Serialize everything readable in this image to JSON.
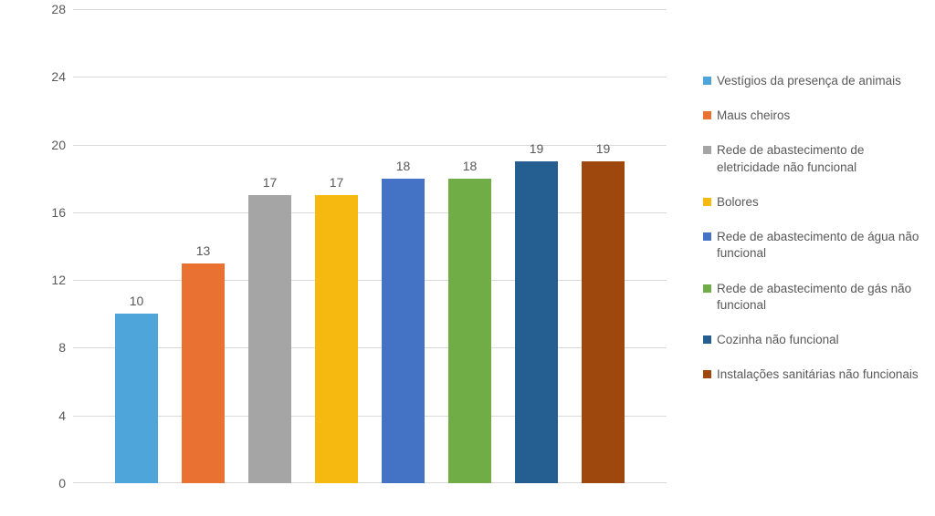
{
  "chart": {
    "type": "bar",
    "background_color": "#ffffff",
    "grid_color": "#d9d9d9",
    "axis_font_color": "#595959",
    "axis_fontsize": 14,
    "datalabel_fontsize": 14,
    "legend_fontsize": 13.5,
    "ylim": [
      0,
      28
    ],
    "ytick_step": 4,
    "yticks": [
      0,
      4,
      8,
      12,
      16,
      20,
      24,
      28
    ],
    "bar_width_ratio": 0.78,
    "series": [
      {
        "label": "Vestígios da presença de animais",
        "value": 10,
        "color": "#4ea5d9"
      },
      {
        "label": "Maus cheiros",
        "value": 13,
        "color": "#e97132"
      },
      {
        "label": "Rede de abastecimento de eletricidade não funcional",
        "value": 17,
        "color": "#a5a5a5"
      },
      {
        "label": "Bolores",
        "value": 17,
        "color": "#f5b90f"
      },
      {
        "label": "Rede de abastecimento de água não funcional",
        "value": 18,
        "color": "#4472c4"
      },
      {
        "label": "Rede de abastecimento de gás não funcional",
        "value": 18,
        "color": "#70ad47"
      },
      {
        "label": "Cozinha não funcional",
        "value": 19,
        "color": "#255e91"
      },
      {
        "label": "Instalações sanitárias não funcionais",
        "value": 19,
        "color": "#9e480e"
      }
    ]
  }
}
